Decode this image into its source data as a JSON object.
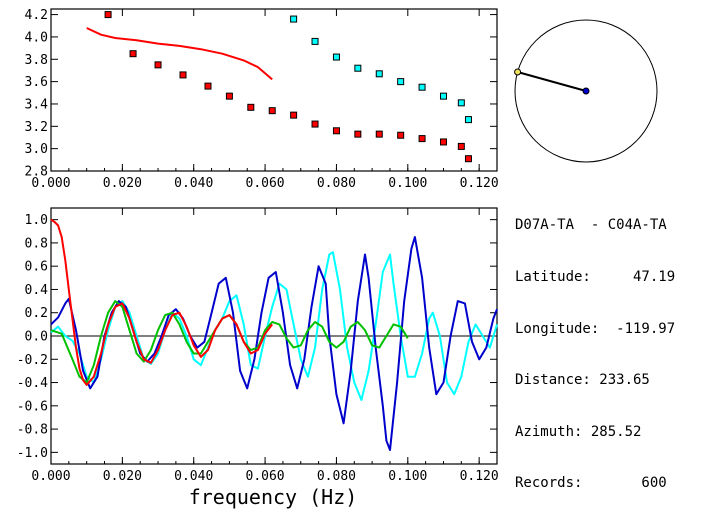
{
  "chart_data": [
    {
      "type": "scatter",
      "xlim": [
        0.0,
        0.125
      ],
      "ylim": [
        2.8,
        4.25
      ],
      "x_ticks": [
        "0.000",
        "0.020",
        "0.040",
        "0.060",
        "0.080",
        "0.100",
        "0.120"
      ],
      "y_ticks": [
        "2.8",
        "3.0",
        "3.2",
        "3.4",
        "3.6",
        "3.8",
        "4.0",
        "4.2"
      ],
      "series": [
        {
          "color": "#ff0000",
          "points": [
            [
              0.016,
              4.2
            ],
            [
              0.023,
              3.85
            ],
            [
              0.03,
              3.75
            ],
            [
              0.037,
              3.66
            ],
            [
              0.044,
              3.56
            ],
            [
              0.05,
              3.47
            ],
            [
              0.056,
              3.37
            ],
            [
              0.062,
              3.34
            ],
            [
              0.068,
              3.3
            ],
            [
              0.074,
              3.22
            ],
            [
              0.08,
              3.16
            ],
            [
              0.086,
              3.13
            ],
            [
              0.092,
              3.13
            ],
            [
              0.098,
              3.12
            ],
            [
              0.104,
              3.09
            ],
            [
              0.11,
              3.06
            ],
            [
              0.115,
              3.02
            ],
            [
              0.117,
              2.91
            ]
          ]
        },
        {
          "color": "#00ffff",
          "points": [
            [
              0.068,
              4.16
            ],
            [
              0.074,
              3.96
            ],
            [
              0.08,
              3.82
            ],
            [
              0.086,
              3.72
            ],
            [
              0.092,
              3.67
            ],
            [
              0.098,
              3.6
            ],
            [
              0.104,
              3.55
            ],
            [
              0.11,
              3.47
            ],
            [
              0.115,
              3.41
            ],
            [
              0.117,
              3.26
            ]
          ]
        },
        {
          "type": "line",
          "color": "#ff0000",
          "points": [
            [
              0.01,
              4.08
            ],
            [
              0.014,
              4.02
            ],
            [
              0.018,
              3.99
            ],
            [
              0.024,
              3.97
            ],
            [
              0.03,
              3.94
            ],
            [
              0.036,
              3.92
            ],
            [
              0.042,
              3.89
            ],
            [
              0.048,
              3.85
            ],
            [
              0.054,
              3.79
            ],
            [
              0.058,
              3.73
            ],
            [
              0.062,
              3.62
            ]
          ]
        }
      ]
    },
    {
      "type": "line",
      "xlabel": "frequency (Hz)",
      "xlim": [
        0.0,
        0.125
      ],
      "ylim": [
        -1.1,
        1.1
      ],
      "x_ticks": [
        "0.000",
        "0.020",
        "0.040",
        "0.060",
        "0.080",
        "0.100",
        "0.120"
      ],
      "y_ticks": [
        "1.0",
        "0.8",
        "0.6",
        "0.4",
        "0.2",
        "0.0",
        "-0.2",
        "-0.4",
        "-0.6",
        "-0.8",
        "-1.0"
      ],
      "series": [
        {
          "color": "#00ffff",
          "points": [
            [
              0.0,
              0.03
            ],
            [
              0.002,
              0.08
            ],
            [
              0.004,
              0.0
            ],
            [
              0.006,
              -0.04
            ],
            [
              0.008,
              -0.15
            ],
            [
              0.01,
              -0.35
            ],
            [
              0.012,
              -0.4
            ],
            [
              0.014,
              -0.2
            ],
            [
              0.016,
              0.05
            ],
            [
              0.018,
              0.25
            ],
            [
              0.02,
              0.3
            ],
            [
              0.022,
              0.2
            ],
            [
              0.024,
              0.0
            ],
            [
              0.026,
              -0.2
            ],
            [
              0.028,
              -0.24
            ],
            [
              0.03,
              -0.15
            ],
            [
              0.032,
              0.05
            ],
            [
              0.034,
              0.2
            ],
            [
              0.036,
              0.15
            ],
            [
              0.038,
              0.0
            ],
            [
              0.04,
              -0.2
            ],
            [
              0.042,
              -0.25
            ],
            [
              0.044,
              -0.1
            ],
            [
              0.046,
              0.05
            ],
            [
              0.048,
              0.15
            ],
            [
              0.05,
              0.3
            ],
            [
              0.052,
              0.35
            ],
            [
              0.054,
              0.1
            ],
            [
              0.056,
              -0.25
            ],
            [
              0.058,
              -0.28
            ],
            [
              0.06,
              0.0
            ],
            [
              0.062,
              0.25
            ],
            [
              0.064,
              0.45
            ],
            [
              0.066,
              0.4
            ],
            [
              0.068,
              0.1
            ],
            [
              0.07,
              -0.2
            ],
            [
              0.072,
              -0.35
            ],
            [
              0.074,
              -0.1
            ],
            [
              0.076,
              0.4
            ],
            [
              0.078,
              0.7
            ],
            [
              0.079,
              0.72
            ],
            [
              0.081,
              0.4
            ],
            [
              0.083,
              -0.1
            ],
            [
              0.085,
              -0.4
            ],
            [
              0.087,
              -0.55
            ],
            [
              0.089,
              -0.3
            ],
            [
              0.091,
              0.1
            ],
            [
              0.093,
              0.55
            ],
            [
              0.095,
              0.7
            ],
            [
              0.096,
              0.45
            ],
            [
              0.098,
              0.0
            ],
            [
              0.1,
              -0.35
            ],
            [
              0.102,
              -0.35
            ],
            [
              0.104,
              -0.15
            ],
            [
              0.106,
              0.15
            ],
            [
              0.107,
              0.2
            ],
            [
              0.109,
              0.0
            ],
            [
              0.111,
              -0.4
            ],
            [
              0.113,
              -0.5
            ],
            [
              0.115,
              -0.35
            ],
            [
              0.117,
              -0.05
            ],
            [
              0.119,
              0.1
            ],
            [
              0.121,
              0.0
            ],
            [
              0.123,
              -0.1
            ],
            [
              0.125,
              0.1
            ]
          ]
        },
        {
          "color": "#0000cc",
          "points": [
            [
              0.0,
              0.1
            ],
            [
              0.002,
              0.16
            ],
            [
              0.004,
              0.28
            ],
            [
              0.005,
              0.32
            ],
            [
              0.007,
              0.05
            ],
            [
              0.009,
              -0.3
            ],
            [
              0.011,
              -0.45
            ],
            [
              0.013,
              -0.35
            ],
            [
              0.015,
              0.0
            ],
            [
              0.017,
              0.2
            ],
            [
              0.019,
              0.3
            ],
            [
              0.021,
              0.25
            ],
            [
              0.023,
              0.05
            ],
            [
              0.025,
              -0.15
            ],
            [
              0.027,
              -0.22
            ],
            [
              0.029,
              -0.15
            ],
            [
              0.031,
              0.0
            ],
            [
              0.033,
              0.18
            ],
            [
              0.035,
              0.23
            ],
            [
              0.037,
              0.15
            ],
            [
              0.039,
              0.0
            ],
            [
              0.041,
              -0.1
            ],
            [
              0.043,
              -0.05
            ],
            [
              0.045,
              0.2
            ],
            [
              0.047,
              0.45
            ],
            [
              0.049,
              0.5
            ],
            [
              0.051,
              0.2
            ],
            [
              0.053,
              -0.3
            ],
            [
              0.055,
              -0.45
            ],
            [
              0.057,
              -0.2
            ],
            [
              0.059,
              0.2
            ],
            [
              0.061,
              0.5
            ],
            [
              0.063,
              0.55
            ],
            [
              0.065,
              0.2
            ],
            [
              0.067,
              -0.25
            ],
            [
              0.069,
              -0.45
            ],
            [
              0.071,
              -0.2
            ],
            [
              0.073,
              0.25
            ],
            [
              0.075,
              0.6
            ],
            [
              0.077,
              0.45
            ],
            [
              0.078,
              0.0
            ],
            [
              0.08,
              -0.5
            ],
            [
              0.082,
              -0.75
            ],
            [
              0.084,
              -0.3
            ],
            [
              0.086,
              0.3
            ],
            [
              0.088,
              0.7
            ],
            [
              0.089,
              0.5
            ],
            [
              0.091,
              -0.1
            ],
            [
              0.093,
              -0.6
            ],
            [
              0.094,
              -0.9
            ],
            [
              0.095,
              -0.98
            ],
            [
              0.097,
              -0.4
            ],
            [
              0.099,
              0.3
            ],
            [
              0.101,
              0.75
            ],
            [
              0.102,
              0.85
            ],
            [
              0.104,
              0.5
            ],
            [
              0.106,
              -0.1
            ],
            [
              0.108,
              -0.5
            ],
            [
              0.11,
              -0.4
            ],
            [
              0.112,
              0.0
            ],
            [
              0.114,
              0.3
            ],
            [
              0.116,
              0.28
            ],
            [
              0.118,
              -0.05
            ],
            [
              0.12,
              -0.2
            ],
            [
              0.122,
              -0.1
            ],
            [
              0.124,
              0.15
            ],
            [
              0.125,
              0.23
            ]
          ]
        },
        {
          "color": "#00c000",
          "points": [
            [
              0.0,
              0.05
            ],
            [
              0.003,
              0.02
            ],
            [
              0.006,
              -0.2
            ],
            [
              0.008,
              -0.35
            ],
            [
              0.01,
              -0.4
            ],
            [
              0.012,
              -0.25
            ],
            [
              0.014,
              0.0
            ],
            [
              0.016,
              0.2
            ],
            [
              0.018,
              0.3
            ],
            [
              0.02,
              0.25
            ],
            [
              0.022,
              0.05
            ],
            [
              0.024,
              -0.15
            ],
            [
              0.026,
              -0.22
            ],
            [
              0.028,
              -0.12
            ],
            [
              0.03,
              0.05
            ],
            [
              0.032,
              0.18
            ],
            [
              0.034,
              0.2
            ],
            [
              0.036,
              0.1
            ],
            [
              0.038,
              -0.05
            ],
            [
              0.04,
              -0.15
            ],
            [
              0.042,
              -0.15
            ],
            [
              0.044,
              -0.05
            ],
            [
              0.046,
              0.05
            ],
            [
              0.048,
              0.15
            ],
            [
              0.05,
              0.18
            ],
            [
              0.052,
              0.1
            ],
            [
              0.054,
              -0.05
            ],
            [
              0.056,
              -0.12
            ],
            [
              0.058,
              -0.1
            ],
            [
              0.06,
              0.05
            ],
            [
              0.062,
              0.12
            ],
            [
              0.064,
              0.1
            ],
            [
              0.066,
              -0.02
            ],
            [
              0.068,
              -0.1
            ],
            [
              0.07,
              -0.08
            ],
            [
              0.072,
              0.05
            ],
            [
              0.074,
              0.12
            ],
            [
              0.076,
              0.08
            ],
            [
              0.078,
              -0.05
            ],
            [
              0.08,
              -0.1
            ],
            [
              0.082,
              -0.05
            ],
            [
              0.084,
              0.08
            ],
            [
              0.086,
              0.12
            ],
            [
              0.088,
              0.05
            ],
            [
              0.09,
              -0.08
            ],
            [
              0.092,
              -0.1
            ],
            [
              0.094,
              0.0
            ],
            [
              0.096,
              0.1
            ],
            [
              0.098,
              0.08
            ],
            [
              0.1,
              -0.02
            ]
          ]
        },
        {
          "color": "#ff0000",
          "points": [
            [
              0.0,
              1.0
            ],
            [
              0.001,
              0.98
            ],
            [
              0.002,
              0.95
            ],
            [
              0.003,
              0.85
            ],
            [
              0.004,
              0.65
            ],
            [
              0.005,
              0.4
            ],
            [
              0.006,
              0.15
            ],
            [
              0.007,
              -0.1
            ],
            [
              0.008,
              -0.28
            ],
            [
              0.009,
              -0.38
            ],
            [
              0.01,
              -0.42
            ],
            [
              0.012,
              -0.35
            ],
            [
              0.014,
              -0.15
            ],
            [
              0.016,
              0.1
            ],
            [
              0.018,
              0.25
            ],
            [
              0.02,
              0.28
            ],
            [
              0.022,
              0.15
            ],
            [
              0.024,
              -0.05
            ],
            [
              0.026,
              -0.2
            ],
            [
              0.028,
              -0.23
            ],
            [
              0.03,
              -0.12
            ],
            [
              0.032,
              0.05
            ],
            [
              0.034,
              0.18
            ],
            [
              0.036,
              0.2
            ],
            [
              0.038,
              0.08
            ],
            [
              0.04,
              -0.08
            ],
            [
              0.042,
              -0.18
            ],
            [
              0.044,
              -0.12
            ],
            [
              0.046,
              0.05
            ],
            [
              0.048,
              0.15
            ],
            [
              0.05,
              0.18
            ],
            [
              0.052,
              0.1
            ],
            [
              0.054,
              -0.05
            ],
            [
              0.056,
              -0.15
            ],
            [
              0.058,
              -0.12
            ],
            [
              0.06,
              0.02
            ],
            [
              0.062,
              0.1
            ]
          ]
        }
      ]
    }
  ],
  "compass": {
    "azimuth": 285.52
  },
  "info": {
    "stations": "D07A-TA  - C04A-TA",
    "latitude": "Latitude:     47.19",
    "longitude": "Longitude:  -119.97",
    "distance": "Distance: 233.65",
    "azimuth": "Azimuth: 285.52",
    "records": "Records:       600"
  }
}
